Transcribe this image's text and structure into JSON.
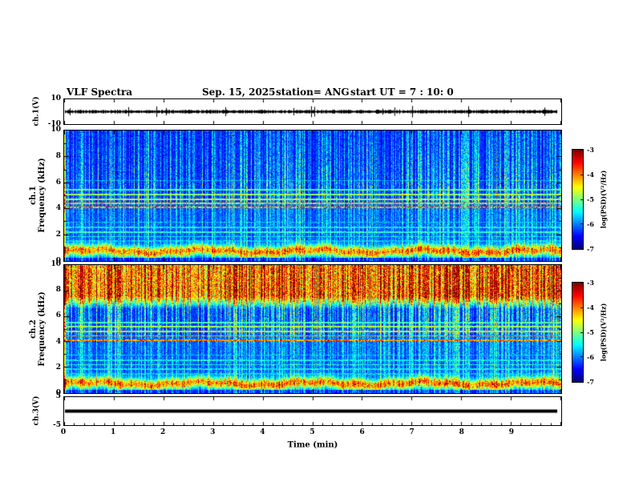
{
  "header": {
    "title": "VLF Spectra",
    "date": "Sep. 15, 2025",
    "station": "station= ANG",
    "start_ut": "start UT  =   7 : 10: 0"
  },
  "axes": {
    "time": {
      "label": "Time (min)",
      "min": 0,
      "max": 10,
      "tick_labels": [
        "0",
        "1",
        "2",
        "3",
        "4",
        "5",
        "6",
        "7",
        "8",
        "9"
      ]
    },
    "frequency": {
      "label": "Frequency (kHz)",
      "min": 0,
      "max": 10,
      "tick_values": [
        0,
        2,
        4,
        6,
        8,
        10
      ],
      "tick_labels": [
        "0",
        "2",
        "4",
        "6",
        "8",
        "10"
      ]
    }
  },
  "panels": {
    "ch1_wave": {
      "ylabel": "ch.1(V)",
      "ytop": "10",
      "ybottom": "-10"
    },
    "ch1_spec": {
      "channel": "ch.1",
      "ylabel": "Frequency (kHz)"
    },
    "ch2_spec": {
      "channel": "ch.2",
      "ylabel": "Frequency (kHz)"
    },
    "ch3_wave": {
      "ylabel": "ch.3(V)",
      "ytop": "5",
      "ybottom": "-5"
    }
  },
  "colorbar": {
    "label": "log(PSD)(V²/Hz)",
    "tick_labels": [
      "-3",
      "-4",
      "-5",
      "-6",
      "-7"
    ],
    "zmin": -7,
    "zmax": -3,
    "colormap": "jet"
  },
  "chart_data": [
    {
      "type": "line",
      "name": "ch1_waveform",
      "xlabel": "Time (min)",
      "xlim": [
        0,
        10
      ],
      "ylabel": "ch.1(V)",
      "ylim": [
        -10,
        10
      ],
      "description": "Broadband noisy voltage trace centered on 0 V with ~±1 V envelope and sporadic larger spikes; record ends near 9.9 min.",
      "render": {
        "seed": 5,
        "flat": false
      }
    },
    {
      "type": "heatmap",
      "name": "ch1_spectrogram",
      "xlabel": "Time (min)",
      "xlim": [
        0,
        10
      ],
      "ylabel": "Frequency (kHz)",
      "ylim": [
        0,
        10
      ],
      "zlabel": "log(PSD)(V²/Hz)",
      "zlim": [
        -7,
        -3
      ],
      "colormap": "jet",
      "description": "VLF spectrogram ch.1: dark-blue background, dense vertical sferic streaks strongest above 5 kHz, bright wavy band near 0.5-1.2 kHz, bright horizontal lines near 4.2-5.5 kHz and weaker lines 1.5-3 kHz.",
      "render": {
        "seed": 11,
        "col_seed": 7,
        "sferic_prob": 0.5,
        "shape": {
          "split": 4.6,
          "low": 0.5,
          "high": 0.85,
          "decay": 10
        },
        "low_band": {
          "center": 0.78,
          "width": 0.42,
          "s": 0.5
        },
        "top_band": null,
        "hlines": [
          {
            "f": 1.55,
            "s": 0.33
          },
          {
            "f": 1.9,
            "s": 0.38
          },
          {
            "f": 2.25,
            "s": 0.43
          },
          {
            "f": 2.6,
            "s": 0.38
          },
          {
            "f": 3.0,
            "s": 0.33
          },
          {
            "f": 4.15,
            "s": 0.78
          },
          {
            "f": 4.45,
            "s": 0.7
          },
          {
            "f": 4.75,
            "s": 0.6
          },
          {
            "f": 5.1,
            "s": 0.55
          },
          {
            "f": 5.5,
            "s": 0.45
          },
          {
            "f": 6.2,
            "s": 0.3
          }
        ]
      }
    },
    {
      "type": "heatmap",
      "name": "ch2_spectrogram",
      "xlabel": "Time (min)",
      "xlim": [
        0,
        10
      ],
      "ylabel": "Frequency (kHz)",
      "ylim": [
        0,
        10
      ],
      "zlabel": "log(PSD)(V²/Hz)",
      "zlim": [
        -7,
        -3
      ],
      "colormap": "jet",
      "description": "VLF spectrogram ch.2: similar to ch.1 but elevated PSD above ~7 kHz giving a green/yellow band with red streak tips; same sferic streaks, low-frequency bright band and horizontal lines near 4.2-5.5 kHz.",
      "render": {
        "seed": 22,
        "col_seed": 7,
        "sferic_prob": 0.55,
        "shape": {
          "split": 4.6,
          "low": 0.5,
          "high": 0.9,
          "decay": 12
        },
        "low_band": {
          "center": 0.78,
          "width": 0.42,
          "s": 0.5
        },
        "top_band": {
          "start": 6.6,
          "s": 0.7
        },
        "hlines": [
          {
            "f": 1.55,
            "s": 0.33
          },
          {
            "f": 1.9,
            "s": 0.38
          },
          {
            "f": 2.25,
            "s": 0.43
          },
          {
            "f": 2.6,
            "s": 0.38
          },
          {
            "f": 3.0,
            "s": 0.33
          },
          {
            "f": 4.15,
            "s": 0.78
          },
          {
            "f": 4.5,
            "s": 0.72
          },
          {
            "f": 4.85,
            "s": 0.62
          },
          {
            "f": 5.2,
            "s": 0.55
          },
          {
            "f": 5.55,
            "s": 0.45
          }
        ]
      }
    },
    {
      "type": "line",
      "name": "ch3_waveform",
      "xlabel": "Time (min)",
      "xlim": [
        0,
        10
      ],
      "ylabel": "ch.3(V)",
      "ylim": [
        -5,
        5
      ],
      "description": "Flat thick trace at 0 V for the whole record.",
      "render": {
        "seed": 9,
        "flat": true
      }
    }
  ]
}
